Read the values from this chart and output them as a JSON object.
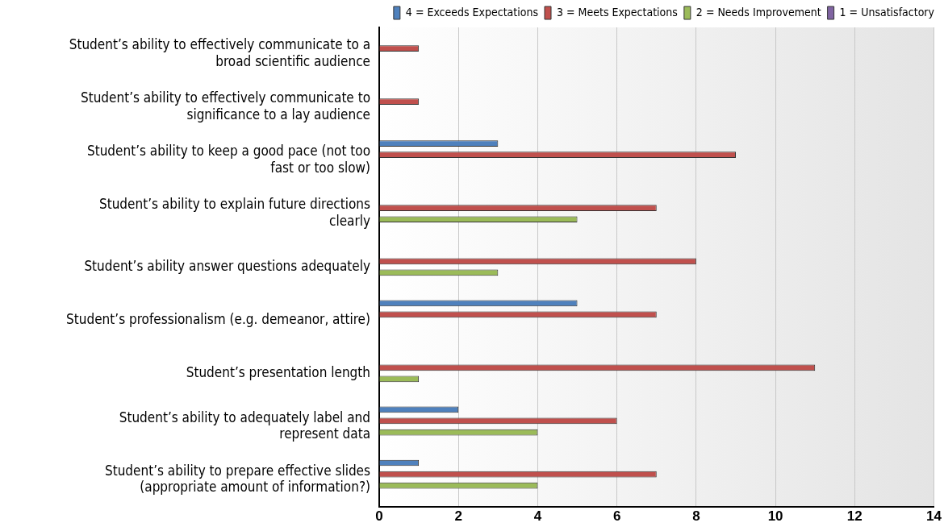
{
  "chart_data": {
    "type": "bar",
    "orientation": "horizontal",
    "categories": [
      "Student’s ability to effectively communicate to a broad scientific audience",
      "Student’s ability to effectively communicate to significance to a lay audience",
      "Student’s ability to keep a good pace (not too fast or too slow)",
      "Student’s ability to explain future directions clearly",
      "Student’s ability answer questions adequately",
      "Student’s professionalism (e.g. demeanor, attire)",
      "Student’s presentation length",
      "Student’s ability to adequately label and represent data",
      "Student’s ability to prepare effective slides (appropriate amount of information?)"
    ],
    "series": [
      {
        "name": "4 = Exceeds Expectations",
        "color": "#4f81bd",
        "values": [
          null,
          null,
          3,
          null,
          null,
          5,
          null,
          2,
          1
        ]
      },
      {
        "name": "3 = Meets Expectations",
        "color": "#c0504d",
        "values": [
          1,
          1,
          9,
          7,
          8,
          7,
          11,
          6,
          7
        ]
      },
      {
        "name": "2 = Needs Improvement",
        "color": "#9bbb59",
        "values": [
          null,
          null,
          null,
          5,
          3,
          null,
          1,
          4,
          4
        ]
      },
      {
        "name": "1 = Unsatisfactory",
        "color": "#8064a2",
        "values": [
          null,
          null,
          null,
          null,
          null,
          null,
          null,
          null,
          null
        ]
      }
    ],
    "xlim": [
      0,
      14
    ],
    "xticks": [
      0,
      2,
      4,
      6,
      8,
      10,
      12,
      14
    ],
    "grid": "x",
    "legend": "top right"
  }
}
